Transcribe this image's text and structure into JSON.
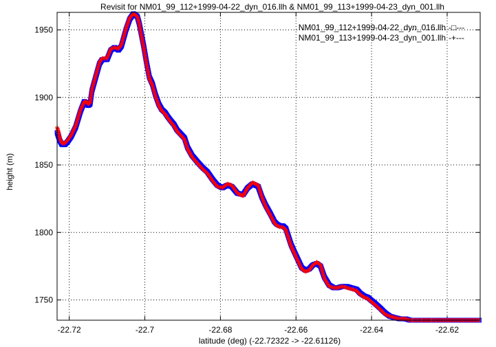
{
  "chart_data": {
    "type": "scatter",
    "title": "Revisit for NM01_99_112+1999-04-22_dyn_016.llh & NM01_99_113+1999-04-23_dyn_001.llh",
    "xlabel": "latitude (deg) (-22.72322 -> -22.61126)",
    "ylabel": "height (m)",
    "xlim": [
      -22.72322,
      -22.61126
    ],
    "ylim": [
      1735,
      1963
    ],
    "grid": true,
    "legend_position": "top-right",
    "xticks": [
      {
        "value": -22.72,
        "label": "-22.72"
      },
      {
        "value": -22.7,
        "label": "-22.7"
      },
      {
        "value": -22.68,
        "label": "-22.68"
      },
      {
        "value": -22.66,
        "label": "-22.66"
      },
      {
        "value": -22.64,
        "label": "-22.64"
      },
      {
        "value": -22.62,
        "label": "-22.62"
      }
    ],
    "yticks": [
      {
        "value": 1750,
        "label": "1750"
      },
      {
        "value": 1800,
        "label": "1800"
      },
      {
        "value": 1850,
        "label": "1850"
      },
      {
        "value": 1900,
        "label": "1900"
      },
      {
        "value": 1950,
        "label": "1950"
      }
    ],
    "series": [
      {
        "name": "NM01_99_112+1999-04-22_dyn_016.llh",
        "legend_suffix": "-□---",
        "color": "#0000ff",
        "marker": "square",
        "x": [
          -22.7232,
          -22.7225,
          -22.7219,
          -22.7212,
          -22.7205,
          -22.7195,
          -22.7183,
          -22.717,
          -22.716,
          -22.7155,
          -22.715,
          -22.7145,
          -22.714,
          -22.713,
          -22.712,
          -22.7113,
          -22.71,
          -22.709,
          -22.708,
          -22.707,
          -22.7062,
          -22.705,
          -22.704,
          -22.703,
          -22.702,
          -22.7015,
          -22.701,
          -22.7003,
          -22.6995,
          -22.6988,
          -22.698,
          -22.6972,
          -22.6963,
          -22.6955,
          -22.6947,
          -22.694,
          -22.6932,
          -22.6923,
          -22.6915,
          -22.6905,
          -22.6895,
          -22.6887,
          -22.6875,
          -22.686,
          -22.6847,
          -22.6835,
          -22.682,
          -22.6808,
          -22.6795,
          -22.6782,
          -22.677,
          -22.6755,
          -22.674,
          -22.6728,
          -22.6715,
          -22.67,
          -22.669,
          -22.668,
          -22.6668,
          -22.6657,
          -22.665,
          -22.6643,
          -22.6635,
          -22.6627,
          -22.662,
          -22.6613,
          -22.6605,
          -22.6595,
          -22.6585,
          -22.6575,
          -22.6565,
          -22.6555,
          -22.6545,
          -22.6535,
          -22.6525,
          -22.6512,
          -22.65,
          -22.649,
          -22.6478,
          -22.6465,
          -22.6453,
          -22.644,
          -22.643,
          -22.642,
          -22.641,
          -22.6402,
          -22.6393,
          -22.6385,
          -22.6377,
          -22.637,
          -22.6362,
          -22.6352,
          -22.634,
          -22.6325,
          -22.631,
          -22.6298,
          -22.6285,
          -22.6275,
          -22.6262,
          -22.6248,
          -22.6235,
          -22.622,
          -22.6205,
          -22.619,
          -22.6175,
          -22.616,
          -22.6145,
          -22.613,
          -22.6113
        ],
        "y": [
          1874,
          1868,
          1865,
          1865,
          1867,
          1871,
          1878,
          1890,
          1897,
          1896,
          1894,
          1895,
          1905,
          1915,
          1925,
          1928,
          1928,
          1935,
          1937,
          1935,
          1938,
          1950,
          1958,
          1962,
          1960,
          1955,
          1948,
          1938,
          1925,
          1915,
          1910,
          1902,
          1895,
          1891,
          1889,
          1886,
          1883,
          1880,
          1876,
          1873,
          1870,
          1863,
          1857,
          1852,
          1848,
          1845,
          1839,
          1835,
          1833,
          1835,
          1834,
          1829,
          1828,
          1833,
          1836,
          1834,
          1826,
          1820,
          1814,
          1808,
          1806,
          1805,
          1805,
          1803,
          1797,
          1791,
          1786,
          1780,
          1774,
          1772,
          1773,
          1776,
          1777,
          1775,
          1767,
          1761,
          1759,
          1759,
          1760,
          1760,
          1759,
          1758,
          1755,
          1753,
          1752,
          1750,
          1748,
          1746,
          1744,
          1742,
          1740,
          1738,
          1737,
          1736,
          1736,
          1735,
          1735,
          1735,
          1735,
          1735,
          1735,
          1735,
          1735,
          1735,
          1735,
          1735,
          1735,
          1735,
          1735
        ]
      },
      {
        "name": "NM01_99_113+1999-04-23_dyn_001.llh",
        "legend_suffix": "-+---",
        "color": "#ff0000",
        "marker": "plus",
        "x": [
          -22.7232,
          -22.7228,
          -22.7224,
          -22.7219,
          -22.7212,
          -22.7205,
          -22.7195,
          -22.7183,
          -22.717,
          -22.716,
          -22.7155,
          -22.715,
          -22.7145,
          -22.714,
          -22.713,
          -22.712,
          -22.7113,
          -22.71,
          -22.709,
          -22.708,
          -22.707,
          -22.7062,
          -22.705,
          -22.704,
          -22.703,
          -22.702,
          -22.7015,
          -22.701,
          -22.7003,
          -22.6995,
          -22.6988,
          -22.698,
          -22.6972,
          -22.6963,
          -22.6955,
          -22.6947,
          -22.694,
          -22.6932,
          -22.6923,
          -22.6915,
          -22.6905,
          -22.6895,
          -22.6887,
          -22.6875,
          -22.686,
          -22.6847,
          -22.6835,
          -22.682,
          -22.6808,
          -22.6795,
          -22.6782,
          -22.677,
          -22.6755,
          -22.674,
          -22.6728,
          -22.6715,
          -22.67,
          -22.669,
          -22.668,
          -22.6668,
          -22.6657,
          -22.665,
          -22.6643,
          -22.6635,
          -22.6627,
          -22.662,
          -22.6613,
          -22.6605,
          -22.6595,
          -22.6585,
          -22.6575,
          -22.6565,
          -22.6555,
          -22.6545,
          -22.6535,
          -22.6525,
          -22.6512,
          -22.65,
          -22.649,
          -22.6478,
          -22.6465,
          -22.6453,
          -22.644,
          -22.643,
          -22.642,
          -22.641,
          -22.6402,
          -22.6393,
          -22.6385,
          -22.6377,
          -22.637,
          -22.6362,
          -22.6352,
          -22.634,
          -22.6325,
          -22.631,
          -22.6298,
          -22.6285,
          -22.6275,
          -22.6262,
          -22.6248,
          -22.6235,
          -22.622,
          -22.6205,
          -22.619,
          -22.6175,
          -22.616,
          -22.6145,
          -22.613,
          -22.6113
        ],
        "y": [
          1878,
          1874,
          1869,
          1866,
          1866,
          1868,
          1872,
          1879,
          1891,
          1897,
          1897,
          1895,
          1896,
          1906,
          1916,
          1926,
          1929,
          1929,
          1936,
          1937,
          1936,
          1939,
          1951,
          1959,
          1962,
          1960,
          1955,
          1947,
          1937,
          1924,
          1914,
          1909,
          1901,
          1894,
          1890,
          1888,
          1885,
          1882,
          1879,
          1875,
          1872,
          1869,
          1862,
          1856,
          1851,
          1847,
          1844,
          1838,
          1834,
          1833,
          1836,
          1835,
          1829,
          1827,
          1833,
          1837,
          1835,
          1826,
          1819,
          1813,
          1807,
          1805,
          1804,
          1804,
          1802,
          1796,
          1790,
          1785,
          1779,
          1773,
          1771,
          1772,
          1776,
          1778,
          1776,
          1766,
          1760,
          1759,
          1759,
          1760,
          1759,
          1758,
          1757,
          1754,
          1752,
          1751,
          1749,
          1747,
          1745,
          1743,
          1741,
          1739,
          1738,
          1737,
          1736,
          1736,
          1735,
          1735,
          1735,
          1735,
          1735,
          1735,
          1735,
          1735,
          1735,
          1735,
          1735,
          1735,
          1735,
          1735
        ]
      }
    ]
  }
}
